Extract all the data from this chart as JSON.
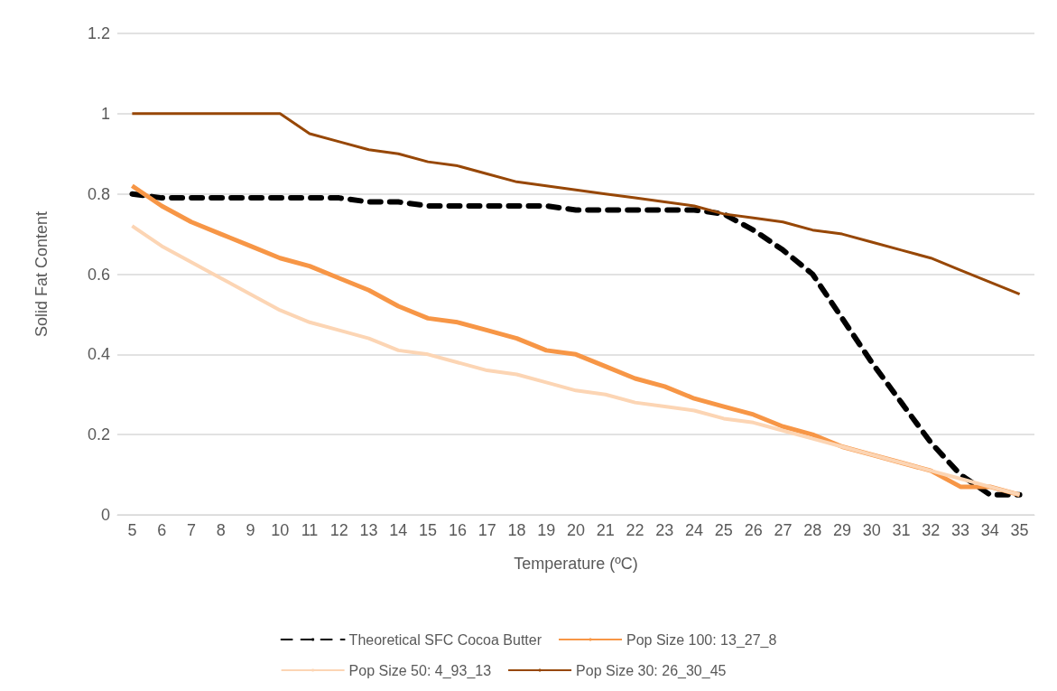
{
  "chart_data": {
    "type": "line",
    "xlabel": "Temperature (ºC)",
    "ylabel": "Solid Fat Content",
    "categories": [
      "5",
      "6",
      "7",
      "8",
      "9",
      "10",
      "11",
      "12",
      "13",
      "14",
      "15",
      "16",
      "17",
      "18",
      "19",
      "20",
      "21",
      "22",
      "23",
      "24",
      "25",
      "26",
      "27",
      "28",
      "29",
      "30",
      "31",
      "32",
      "33",
      "34",
      "35"
    ],
    "ylim": [
      0,
      1.2
    ],
    "yticks": [
      0,
      0.2,
      0.4,
      0.6,
      0.8,
      1,
      1.2
    ],
    "grid": "y",
    "legend": "bottom",
    "marker": "none",
    "series": [
      {
        "name": "Theoretical SFC Cocoa Butter",
        "color": "#000000",
        "line_style": "dashed",
        "values": [
          0.8,
          0.79,
          0.79,
          0.79,
          0.79,
          0.79,
          0.79,
          0.79,
          0.78,
          0.78,
          0.77,
          0.77,
          0.77,
          0.77,
          0.77,
          0.76,
          0.76,
          0.76,
          0.76,
          0.76,
          0.75,
          0.71,
          0.66,
          0.6,
          0.49,
          0.38,
          0.28,
          0.18,
          0.1,
          0.05,
          0.05
        ]
      },
      {
        "name": "Pop Size 100: 13_27_8",
        "color": "#f79646",
        "line_style": "solid",
        "values": [
          0.82,
          0.77,
          0.73,
          0.7,
          0.67,
          0.64,
          0.62,
          0.59,
          0.56,
          0.52,
          0.49,
          0.48,
          0.46,
          0.44,
          0.41,
          0.4,
          0.37,
          0.34,
          0.32,
          0.29,
          0.27,
          0.25,
          0.22,
          0.2,
          0.17,
          0.15,
          0.13,
          0.11,
          0.07,
          0.07,
          0.05
        ]
      },
      {
        "name": "Pop Size 50: 4_93_13",
        "color": "#fcd5b4",
        "line_style": "solid",
        "values": [
          0.72,
          0.67,
          0.63,
          0.59,
          0.55,
          0.51,
          0.48,
          0.46,
          0.44,
          0.41,
          0.4,
          0.38,
          0.36,
          0.35,
          0.33,
          0.31,
          0.3,
          0.28,
          0.27,
          0.26,
          0.24,
          0.23,
          0.21,
          0.19,
          0.17,
          0.15,
          0.13,
          0.11,
          0.09,
          0.07,
          0.05
        ]
      },
      {
        "name": "Pop Size 30: 26_30_45",
        "color": "#974706",
        "line_style": "solid",
        "values": [
          1,
          1,
          1,
          1,
          1,
          1,
          0.95,
          0.93,
          0.91,
          0.9,
          0.88,
          0.87,
          0.85,
          0.83,
          0.82,
          0.81,
          0.8,
          0.79,
          0.78,
          0.77,
          0.75,
          0.74,
          0.73,
          0.71,
          0.7,
          0.68,
          0.66,
          0.64,
          0.61,
          0.58,
          0.55
        ]
      }
    ]
  }
}
